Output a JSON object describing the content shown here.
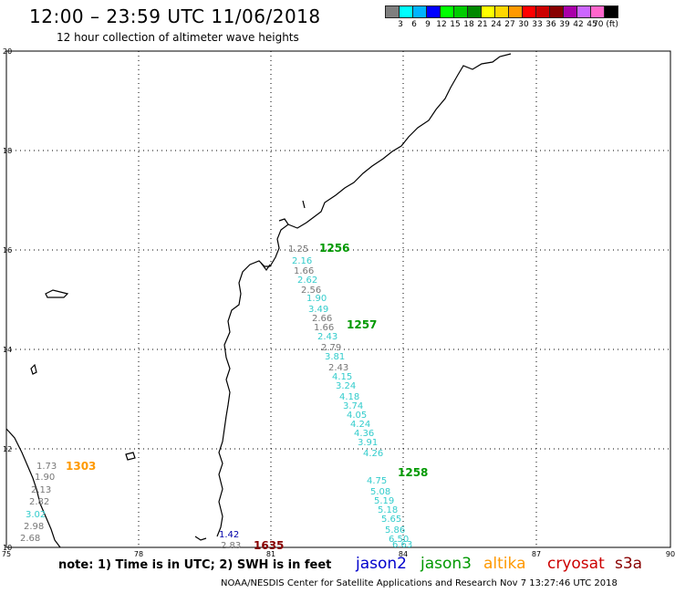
{
  "header": {
    "title": "12:00 – 23:59 UTC 11/06/2018",
    "subtitle": "12 hour collection of altimeter wave heights"
  },
  "colorbar": {
    "colors": [
      "#7f7f7f",
      "#00ffff",
      "#00b4ff",
      "#0000ff",
      "#00ff00",
      "#00cc00",
      "#008800",
      "#ffff00",
      "#ffd700",
      "#ff9900",
      "#ff0000",
      "#cc0000",
      "#880000",
      "#a900a9",
      "#cc66ff",
      "#ff66cc",
      "#000000"
    ],
    "labels": [
      "3",
      "6",
      "9",
      "12",
      "15",
      "18",
      "21",
      "24",
      "27",
      "30",
      "33",
      "36",
      "39",
      "42",
      "45",
      "70 (ft)"
    ]
  },
  "axes": {
    "lat_labels": [
      "20",
      "18",
      "16",
      "14",
      "12",
      "10"
    ],
    "lon_labels": [
      "75",
      "78",
      "81",
      "84",
      "87",
      "90"
    ]
  },
  "annotations": [
    {
      "text": "1.25",
      "color": "#777777"
    },
    {
      "text": "1256",
      "color": "#009900"
    },
    {
      "text": "2.16",
      "color": "#33cccc"
    },
    {
      "text": "1.66",
      "color": "#777777"
    },
    {
      "text": "2.62",
      "color": "#33cccc"
    },
    {
      "text": "2.56",
      "color": "#777777"
    },
    {
      "text": "1.90",
      "color": "#33cccc"
    },
    {
      "text": "3.49",
      "color": "#33cccc"
    },
    {
      "text": "2.66",
      "color": "#777777"
    },
    {
      "text": "1.66",
      "color": "#777777"
    },
    {
      "text": "1257",
      "color": "#009900"
    },
    {
      "text": "2.43",
      "color": "#33cccc"
    },
    {
      "text": "2.79",
      "color": "#777777"
    },
    {
      "text": "3.81",
      "color": "#33cccc"
    },
    {
      "text": "2.43",
      "color": "#777777"
    },
    {
      "text": "4.15",
      "color": "#33cccc"
    },
    {
      "text": "3.24",
      "color": "#33cccc"
    },
    {
      "text": "4.18",
      "color": "#33cccc"
    },
    {
      "text": "3.74",
      "color": "#33cccc"
    },
    {
      "text": "4.05",
      "color": "#33cccc"
    },
    {
      "text": "4.24",
      "color": "#33cccc"
    },
    {
      "text": "4.36",
      "color": "#33cccc"
    },
    {
      "text": "3.91",
      "color": "#33cccc"
    },
    {
      "text": "4.26",
      "color": "#33cccc"
    },
    {
      "text": "1258",
      "color": "#009900"
    },
    {
      "text": "4.75",
      "color": "#33cccc"
    },
    {
      "text": "5.08",
      "color": "#33cccc"
    },
    {
      "text": "5.19",
      "color": "#33cccc"
    },
    {
      "text": "5.18",
      "color": "#33cccc"
    },
    {
      "text": "5.65",
      "color": "#33cccc"
    },
    {
      "text": "5.86",
      "color": "#33cccc"
    },
    {
      "text": "6.50",
      "color": "#33cccc"
    },
    {
      "text": "6.63",
      "color": "#33cccc"
    },
    {
      "text": "1.73",
      "color": "#777777"
    },
    {
      "text": "1303",
      "color": "#ff9900"
    },
    {
      "text": "1.90",
      "color": "#777777"
    },
    {
      "text": "2.13",
      "color": "#777777"
    },
    {
      "text": "2.82",
      "color": "#777777"
    },
    {
      "text": "3.02",
      "color": "#33cccc"
    },
    {
      "text": "2.98",
      "color": "#777777"
    },
    {
      "text": "2.68",
      "color": "#777777"
    },
    {
      "text": "1.42",
      "color": "#0000aa"
    },
    {
      "text": "2.83",
      "color": "#777777"
    },
    {
      "text": "1635",
      "color": "#880000"
    }
  ],
  "footer": {
    "note": "note: 1) Time is in UTC; 2) SWH is in feet",
    "satellites": [
      {
        "name": "jason2",
        "color": "#0000cc"
      },
      {
        "name": "jason3",
        "color": "#009900"
      },
      {
        "name": "altika",
        "color": "#ff9900"
      },
      {
        "name": "cryosat",
        "color": "#cc0000"
      },
      {
        "name": "s3a",
        "color": "#880000"
      }
    ],
    "credit": "NOAA/NESDIS Center for Satellite Applications and Research    Nov  7 13:27:46 UTC 2018"
  }
}
